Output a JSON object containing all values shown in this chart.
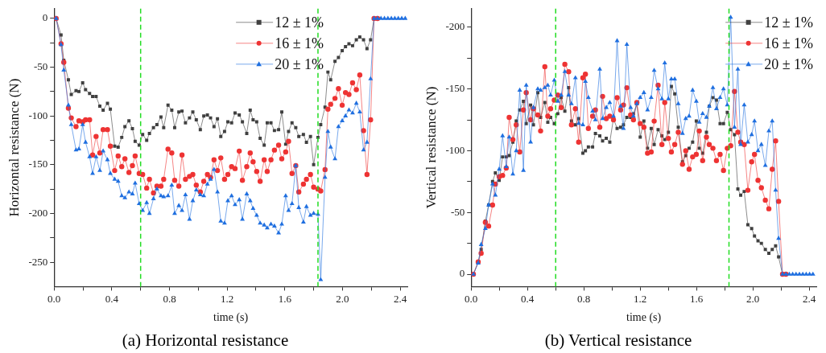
{
  "chart_data": [
    {
      "type": "line",
      "title": "(a) Horizontal resistance",
      "xlabel": "time (s)",
      "ylabel": "Horizontal resistance (N)",
      "grid": false,
      "legend": "top right",
      "xlim": [
        0,
        2.45
      ],
      "xticks": [
        {
          "value": 0,
          "label": "0.0"
        },
        {
          "value": 0.2,
          "label": null
        },
        0.4,
        {
          "value": 0.6,
          "label": null
        },
        0.8,
        {
          "value": 1.0,
          "label": null
        },
        1.2,
        {
          "value": 1.4,
          "label": null
        },
        1.6,
        {
          "value": 1.8,
          "label": null
        },
        {
          "value": 2.0,
          "label": "2.0"
        },
        {
          "value": 2.2,
          "label": null
        },
        2.4
      ],
      "ylim": [
        -275,
        10
      ],
      "yticks": [
        0,
        {
          "value": -25,
          "label": null
        },
        -50,
        {
          "value": -75,
          "label": null
        },
        -100,
        {
          "value": -125,
          "label": null
        },
        -150,
        {
          "value": -175,
          "label": null
        },
        -200,
        {
          "value": -225,
          "label": null
        },
        -250
      ],
      "ref_lines": [
        {
          "axis": "x",
          "value": 0.6,
          "color": "#22dd22",
          "line_style": "dashed"
        },
        {
          "axis": "x",
          "value": 1.83,
          "color": "#22dd22",
          "line_style": "dashed"
        }
      ],
      "x": [
        0.014,
        0.048,
        0.067,
        0.099,
        0.119,
        0.152,
        0.172,
        0.198,
        0.218,
        0.246,
        0.267,
        0.291,
        0.317,
        0.34,
        0.37,
        0.39,
        0.42,
        0.444,
        0.469,
        0.491,
        0.519,
        0.543,
        0.562,
        0.59,
        0.614,
        0.642,
        0.661,
        0.689,
        0.713,
        0.741,
        0.76,
        0.79,
        0.816,
        0.836,
        0.865,
        0.887,
        0.911,
        0.939,
        0.962,
        0.986,
        1.014,
        1.038,
        1.063,
        1.085,
        1.109,
        1.133,
        1.156,
        1.182,
        1.205,
        1.231,
        1.255,
        1.284,
        1.306,
        1.336,
        1.36,
        1.38,
        1.405,
        1.429,
        1.457,
        1.478,
        1.504,
        1.528,
        1.557,
        1.579,
        1.606,
        1.626,
        1.65,
        1.676,
        1.697,
        1.729,
        1.75,
        1.778,
        1.8,
        1.83,
        1.849,
        1.879,
        1.899,
        1.918,
        1.948,
        1.972,
        1.998,
        2.021,
        2.045,
        2.07,
        2.096,
        2.12,
        2.146,
        2.17,
        2.195,
        2.219,
        2.243,
        2.267,
        2.291,
        2.315,
        2.339,
        2.363,
        2.387,
        2.411,
        2.435
      ],
      "series": [
        {
          "name": "12 ± 1%",
          "color": "#404040",
          "marker": "square",
          "values": [
            0,
            -17,
            -43,
            -63,
            -78,
            -74,
            -75,
            -66,
            -73,
            -77,
            -80,
            -80,
            -90,
            -94,
            -87,
            -93,
            -131,
            -132,
            -122,
            -111,
            -105,
            -113,
            -126,
            -130,
            -119,
            -125,
            -118,
            -112,
            -109,
            -101,
            -112,
            -89,
            -94,
            -112,
            -96,
            -95,
            -107,
            -102,
            -96,
            -104,
            -114,
            -100,
            -99,
            -102,
            -111,
            -103,
            -121,
            -116,
            -106,
            -107,
            -97,
            -99,
            -106,
            -118,
            -94,
            -104,
            -106,
            -123,
            -130,
            -107,
            -107,
            -115,
            -114,
            -96,
            -129,
            -116,
            -107,
            -112,
            -121,
            -119,
            -127,
            -121,
            -150,
            -122,
            -109,
            -91,
            -55,
            -63,
            -44,
            -40,
            -33,
            -29,
            -26,
            -28,
            -22,
            -19,
            -22,
            -31,
            -22,
            0,
            0,
            null,
            null,
            null,
            null,
            null,
            null,
            null,
            null
          ]
        },
        {
          "name": "16 ± 1%",
          "color": "#ee3333",
          "marker": "circle",
          "values": [
            0,
            -26,
            -45,
            -92,
            -102,
            -111,
            -105,
            -106,
            -104,
            -104,
            -140,
            -121,
            -138,
            -114,
            -114,
            -131,
            -156,
            -141,
            -152,
            -144,
            -158,
            -151,
            -141,
            -159,
            -160,
            -174,
            -165,
            -179,
            -172,
            -172,
            -165,
            -134,
            -138,
            -166,
            -172,
            -140,
            -165,
            -162,
            -160,
            -171,
            -178,
            -167,
            -160,
            -163,
            -145,
            -156,
            -143,
            -165,
            -160,
            -152,
            -154,
            -136,
            -166,
            -152,
            -138,
            -147,
            -157,
            -167,
            -145,
            -157,
            -145,
            -135,
            -130,
            -144,
            -137,
            -126,
            -159,
            -151,
            -178,
            -170,
            -165,
            -160,
            -173,
            -175,
            -177,
            -155,
            -93,
            -88,
            -82,
            -72,
            -89,
            -76,
            -78,
            -66,
            -73,
            -58,
            -115,
            -160,
            -104,
            0,
            0,
            null,
            null,
            null,
            null,
            null,
            null,
            null,
            null
          ]
        },
        {
          "name": "20 ± 1%",
          "color": "#1f6fe0",
          "marker": "triangle",
          "values": [
            0,
            -27,
            -53,
            -89,
            -109,
            -135,
            -134,
            -109,
            -127,
            -142,
            -159,
            -142,
            -156,
            -136,
            -145,
            -159,
            -165,
            -167,
            -182,
            -184,
            -178,
            -180,
            -169,
            -190,
            -197,
            -189,
            -200,
            -185,
            -175,
            -182,
            -183,
            -182,
            -171,
            -200,
            -192,
            -197,
            -181,
            -206,
            -187,
            -176,
            -181,
            -182,
            -170,
            -165,
            -155,
            -178,
            -208,
            -210,
            -187,
            -182,
            -191,
            -186,
            -206,
            -180,
            -187,
            -195,
            -202,
            -210,
            -212,
            -215,
            -211,
            -213,
            -220,
            -211,
            -182,
            -197,
            -190,
            -151,
            -194,
            -209,
            -193,
            -202,
            -200,
            -201,
            -268,
            -163,
            -116,
            -132,
            -144,
            -111,
            -105,
            -100,
            -94,
            -97,
            -87,
            -96,
            -135,
            -127,
            -62,
            0,
            0,
            0,
            0,
            0,
            0,
            0,
            0,
            0,
            0
          ]
        }
      ]
    },
    {
      "type": "line",
      "title": "(b) Vertical resistance",
      "xlabel": "time (s)",
      "ylabel": "Vertical resistance (N)",
      "grid": false,
      "legend": "top right",
      "xlim": [
        0,
        2.45
      ],
      "xticks": [
        {
          "value": 0,
          "label": "0.0"
        },
        {
          "value": 0.2,
          "label": null
        },
        0.4,
        {
          "value": 0.6,
          "label": null
        },
        0.8,
        {
          "value": 1.0,
          "label": null
        },
        1.2,
        {
          "value": 1.4,
          "label": null
        },
        1.6,
        {
          "value": 1.8,
          "label": null
        },
        {
          "value": 2.0,
          "label": "2.0"
        },
        {
          "value": 2.2,
          "label": null
        },
        2.4
      ],
      "ylim": [
        10,
        -215
      ],
      "yticks": [
        0,
        {
          "value": -25,
          "label": null
        },
        -50,
        {
          "value": -75,
          "label": null
        },
        -100,
        {
          "value": -125,
          "label": null
        },
        -150,
        {
          "value": -175,
          "label": null
        },
        -200
      ],
      "ref_lines": [
        {
          "axis": "x",
          "value": 0.6,
          "color": "#22dd22",
          "line_style": "dashed"
        },
        {
          "axis": "x",
          "value": 1.83,
          "color": "#22dd22",
          "line_style": "dashed"
        }
      ],
      "x": [
        0.016,
        0.05,
        0.071,
        0.101,
        0.124,
        0.152,
        0.172,
        0.199,
        0.223,
        0.249,
        0.27,
        0.296,
        0.32,
        0.345,
        0.371,
        0.391,
        0.422,
        0.442,
        0.473,
        0.493,
        0.523,
        0.544,
        0.564,
        0.59,
        0.615,
        0.639,
        0.665,
        0.692,
        0.712,
        0.74,
        0.763,
        0.793,
        0.811,
        0.832,
        0.862,
        0.882,
        0.913,
        0.933,
        0.959,
        0.984,
        1.01,
        1.036,
        1.061,
        1.081,
        1.105,
        1.132,
        1.152,
        1.176,
        1.2,
        1.226,
        1.252,
        1.278,
        1.299,
        1.327,
        1.354,
        1.374,
        1.4,
        1.421,
        1.445,
        1.47,
        1.5,
        1.523,
        1.547,
        1.572,
        1.598,
        1.619,
        1.643,
        1.67,
        1.69,
        1.716,
        1.741,
        1.767,
        1.791,
        1.818,
        1.842,
        1.869,
        1.893,
        1.913,
        1.938,
        1.964,
        1.991,
        2.011,
        2.036,
        2.06,
        2.088,
        2.113,
        2.137,
        2.161,
        2.182,
        2.21,
        2.234,
        2.258,
        2.282,
        2.306,
        2.33,
        2.354,
        2.378,
        2.402,
        2.426
      ],
      "series": [
        {
          "name": "12 ± 1%",
          "color": "#404040",
          "marker": "square",
          "values": [
            0,
            -10,
            -20,
            -43,
            -56,
            -75,
            -82,
            -76,
            -95,
            -95,
            -96,
            -107,
            -124,
            -133,
            -140,
            -122,
            -137,
            -121,
            -147,
            -127,
            -139,
            -123,
            -127,
            -122,
            -130,
            -143,
            -132,
            -151,
            -124,
            -121,
            -126,
            -98,
            -100,
            -103,
            -103,
            -114,
            -112,
            -108,
            -110,
            -107,
            -126,
            -118,
            -119,
            -121,
            -127,
            -127,
            -130,
            -138,
            -111,
            -124,
            -102,
            -118,
            -105,
            -117,
            -112,
            -109,
            -115,
            -152,
            -146,
            -119,
            -91,
            -96,
            -102,
            -107,
            -124,
            -102,
            -98,
            -115,
            -136,
            -143,
            -141,
            -122,
            -122,
            -131,
            -117,
            -113,
            -69,
            -64,
            -67,
            -40,
            -37,
            -31,
            -27,
            -25,
            -20,
            -17,
            -20,
            -23,
            -14,
            0,
            0,
            null,
            null,
            null,
            null,
            null,
            null,
            null,
            null
          ]
        },
        {
          "name": "16 ± 1%",
          "color": "#ee3333",
          "marker": "circle",
          "values": [
            0,
            -10,
            -17,
            -42,
            -39,
            -56,
            -73,
            -79,
            -80,
            -86,
            -127,
            -109,
            -121,
            -99,
            -133,
            -147,
            -125,
            -134,
            -129,
            -116,
            -168,
            -128,
            -134,
            -141,
            -145,
            -135,
            -170,
            -164,
            -121,
            -134,
            -107,
            -159,
            -162,
            -118,
            -128,
            -133,
            -119,
            -144,
            -126,
            -128,
            -125,
            -143,
            -133,
            -137,
            -151,
            -129,
            -125,
            -139,
            -122,
            -119,
            -98,
            -99,
            -124,
            -153,
            -105,
            -139,
            -110,
            -99,
            -105,
            -115,
            -89,
            -100,
            -85,
            -95,
            -97,
            -116,
            -92,
            -111,
            -105,
            -102,
            -92,
            -97,
            -84,
            -102,
            -104,
            -148,
            -115,
            -107,
            -105,
            -68,
            -91,
            -97,
            -76,
            -70,
            -60,
            -53,
            -85,
            -108,
            -59,
            0,
            0,
            null,
            null,
            null,
            null,
            null,
            null,
            null,
            null
          ]
        },
        {
          "name": "20 ± 1%",
          "color": "#1f6fe0",
          "marker": "triangle",
          "values": [
            0,
            -9,
            -24,
            -37,
            -56,
            -73,
            -64,
            -85,
            -112,
            -87,
            -111,
            -81,
            -100,
            -149,
            -84,
            -153,
            -107,
            -135,
            -150,
            -149,
            -151,
            -153,
            -145,
            -157,
            -140,
            -145,
            -164,
            -145,
            -138,
            -159,
            -122,
            -121,
            -156,
            -143,
            -132,
            -125,
            -166,
            -126,
            -135,
            -139,
            -128,
            -189,
            -136,
            -118,
            -186,
            -135,
            -128,
            -138,
            -143,
            -147,
            -133,
            -143,
            -165,
            -150,
            -142,
            -171,
            -142,
            -158,
            -158,
            -138,
            -114,
            -126,
            -128,
            -149,
            -140,
            -123,
            -130,
            -127,
            -136,
            -151,
            -134,
            -143,
            -150,
            -137,
            -208,
            -119,
            -166,
            -105,
            -137,
            -107,
            -113,
            -124,
            -100,
            -105,
            -88,
            -116,
            -124,
            -68,
            -29,
            0,
            0,
            0,
            0,
            0,
            0,
            0,
            0,
            0,
            0
          ]
        }
      ]
    }
  ]
}
